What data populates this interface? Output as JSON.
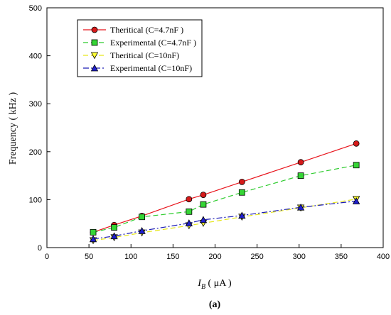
{
  "chart_data": {
    "type": "line",
    "ylabel": "Frequency ( kHz )",
    "xlabel_main": "I",
    "xlabel_sub": "B",
    "xlabel_rest": " ( μA )",
    "caption": "(a)",
    "xlim": [
      0,
      400
    ],
    "ylim": [
      0,
      500
    ],
    "xticks": [
      0,
      50,
      100,
      150,
      200,
      250,
      300,
      350,
      400
    ],
    "yticks": [
      0,
      100,
      200,
      300,
      400,
      500
    ],
    "grid": false,
    "legend_position": "top-left",
    "series": [
      {
        "name": "Theritical  (C=4.7nF )",
        "color": "#e8141c",
        "line_style": "solid",
        "marker": "circle",
        "marker_fill": "#d61a1a",
        "x": [
          55,
          80,
          113,
          169,
          186,
          232,
          302,
          368
        ],
        "y": [
          32,
          47,
          66,
          101,
          110,
          137,
          178,
          217
        ]
      },
      {
        "name": "Experimental (C=4.7nF )",
        "color": "#2ecc2e",
        "line_style": "dashed",
        "marker": "square",
        "marker_fill": "#35d535",
        "x": [
          55,
          80,
          113,
          169,
          186,
          232,
          302,
          368
        ],
        "y": [
          32,
          42,
          64,
          75,
          90,
          115,
          150,
          172
        ]
      },
      {
        "name": "Theritical  (C=10nF)",
        "color": "#e6e619",
        "line_style": "dashed",
        "marker": "triangle-down",
        "marker_fill": "#ffff33",
        "x": [
          55,
          80,
          113,
          169,
          186,
          232,
          302,
          368
        ],
        "y": [
          15,
          21,
          31,
          46,
          51,
          64,
          83,
          101
        ]
      },
      {
        "name": "Experimental (C=10nF)",
        "color": "#1a1ab4",
        "line_style": "dashdot",
        "marker": "triangle-up",
        "marker_fill": "#1f1fcc",
        "x": [
          55,
          80,
          113,
          169,
          186,
          232,
          302,
          368
        ],
        "y": [
          18,
          24,
          35,
          51,
          58,
          67,
          84,
          97
        ]
      }
    ]
  }
}
